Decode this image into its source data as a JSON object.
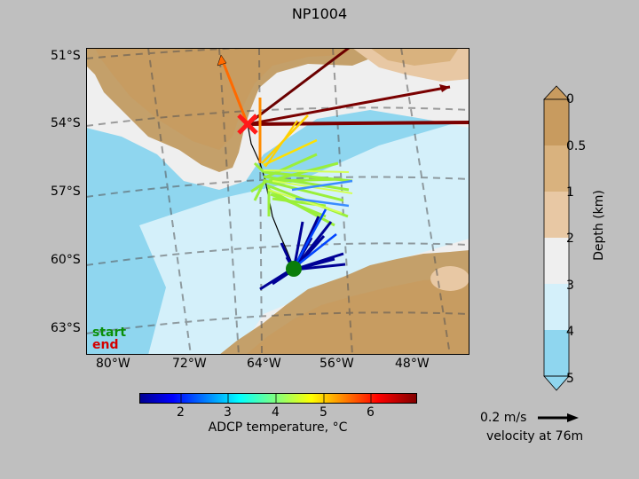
{
  "title": "NP1004",
  "map": {
    "lat_labels": [
      "51°S",
      "54°S",
      "57°S",
      "60°S",
      "63°S"
    ],
    "lon_labels": [
      "80°W",
      "72°W",
      "64°W",
      "56°W",
      "48°W"
    ],
    "start_label": "start",
    "end_label": "end",
    "land_color": "#c4a06a",
    "ocean_color": "#8fd6ef"
  },
  "depth_colorbar": {
    "label": "Depth (km)",
    "ticks": [
      "0",
      "0.5",
      "1",
      "2",
      "3",
      "4",
      "5"
    ],
    "colors": [
      "#c89b5f",
      "#d9b27e",
      "#e8c8a4",
      "#efefef",
      "#d4f0fa",
      "#8fd6ef"
    ]
  },
  "temp_colorbar": {
    "label": "ADCP temperature, °C",
    "ticks": [
      "2",
      "3",
      "4",
      "5",
      "6"
    ],
    "colors": [
      "#00008f",
      "#0000ff",
      "#0070ff",
      "#00dfff",
      "#4fffaf",
      "#bfff3f",
      "#ffdf00",
      "#ff7000",
      "#ff0000",
      "#8f0000"
    ]
  },
  "velocity_scale": {
    "speed": "0.2 m/s",
    "caption": "velocity at 76m"
  }
}
